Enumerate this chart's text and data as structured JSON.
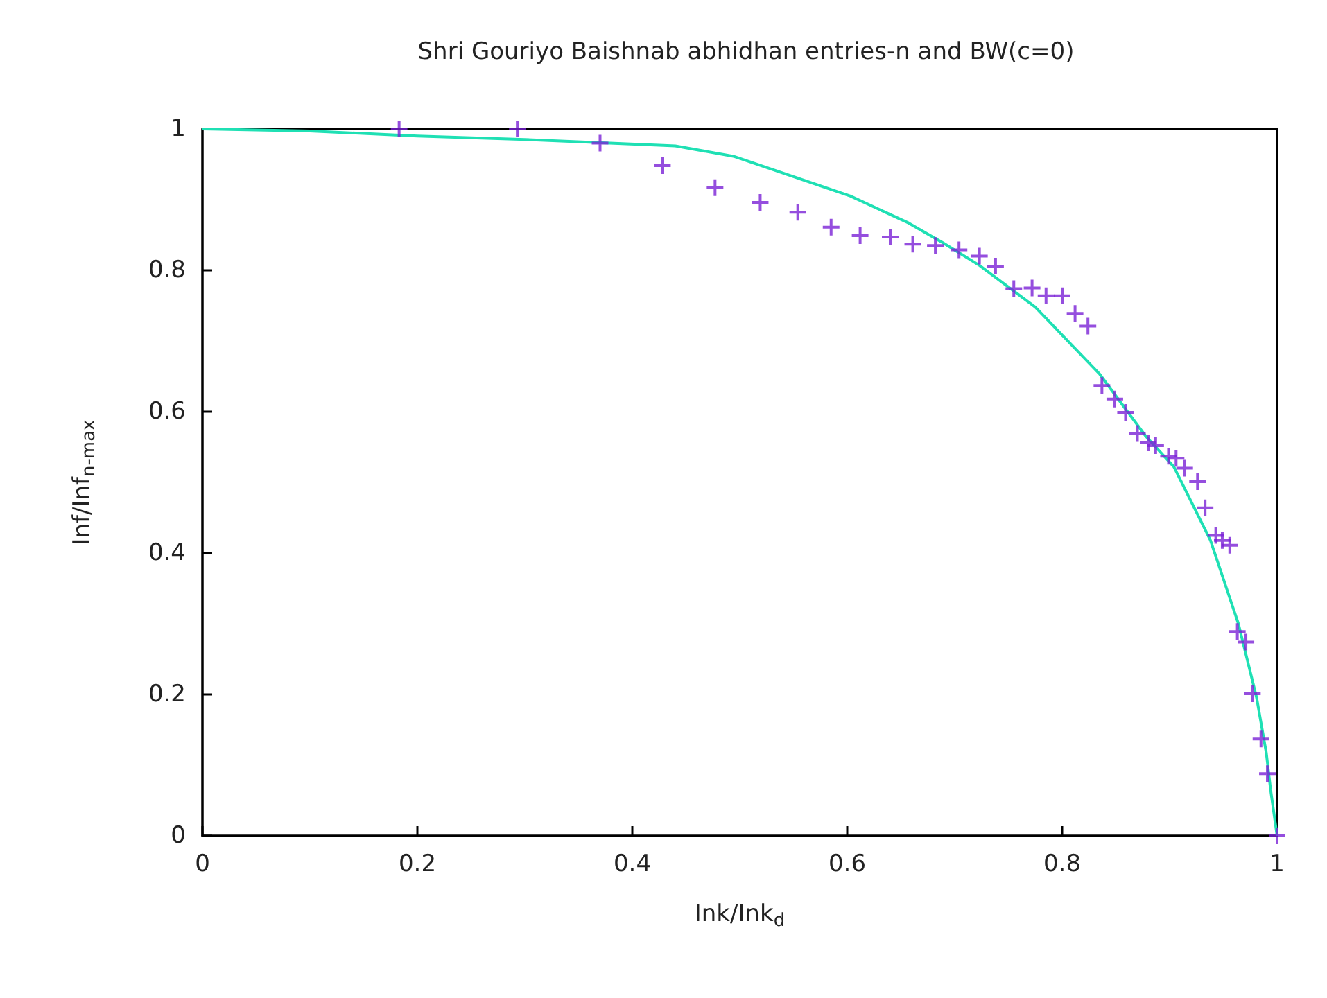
{
  "chart_data": {
    "type": "scatter",
    "title": "Shri Gouriyo Baishnab abhidhan entries-n and BW(c=0)",
    "xlabel": "Ink/Ink$_{d}$",
    "ylabel": "Inf/Inf$_{n-max}$",
    "xlim": [
      0,
      1
    ],
    "xticks": [
      0,
      0.2,
      0.4,
      0.6,
      0.8,
      1
    ],
    "ylim": [
      0,
      1
    ],
    "yticks": [
      0,
      0.2,
      0.4,
      0.6,
      0.8,
      1
    ],
    "grid": false,
    "series": [
      {
        "marker": "cross",
        "color": "#7b22d6",
        "x": [
          0.183,
          0.293,
          0.37,
          0.428,
          0.477,
          0.519,
          0.554,
          0.585,
          0.612,
          0.64,
          0.661,
          0.682,
          0.704,
          0.723,
          0.738,
          0.755,
          0.772,
          0.785,
          0.8,
          0.812,
          0.824,
          0.837,
          0.849,
          0.859,
          0.87,
          0.88,
          0.887,
          0.899,
          0.906,
          0.914,
          0.926,
          0.933,
          0.943,
          0.949,
          0.956,
          0.963,
          0.971,
          0.977,
          0.985,
          0.991,
          1.0
        ],
        "values": [
          1.0,
          1.0,
          0.98,
          0.948,
          0.917,
          0.896,
          0.882,
          0.861,
          0.849,
          0.847,
          0.837,
          0.835,
          0.829,
          0.82,
          0.806,
          0.774,
          0.775,
          0.764,
          0.764,
          0.739,
          0.721,
          0.637,
          0.618,
          0.599,
          0.569,
          0.556,
          0.552,
          0.537,
          0.534,
          0.52,
          0.501,
          0.464,
          0.425,
          0.418,
          0.411,
          0.289,
          0.274,
          0.201,
          0.137,
          0.088,
          0.0
        ]
      },
      {
        "type": "line",
        "marker": "none",
        "line_style": "solid",
        "color": "#1fe0b4",
        "x": [
          0,
          0.1,
          0.2,
          0.3,
          0.44,
          0.495,
          0.603,
          0.657,
          0.689,
          0.723,
          0.775,
          0.835,
          0.878,
          0.904,
          0.938,
          0.964,
          0.981,
          0.99,
          0.994,
          1.0
        ],
        "values": [
          1.0,
          0.997,
          0.99,
          0.985,
          0.976,
          0.961,
          0.905,
          0.867,
          0.839,
          0.807,
          0.748,
          0.653,
          0.565,
          0.522,
          0.418,
          0.3,
          0.195,
          0.117,
          0.065,
          0.0
        ]
      }
    ]
  }
}
